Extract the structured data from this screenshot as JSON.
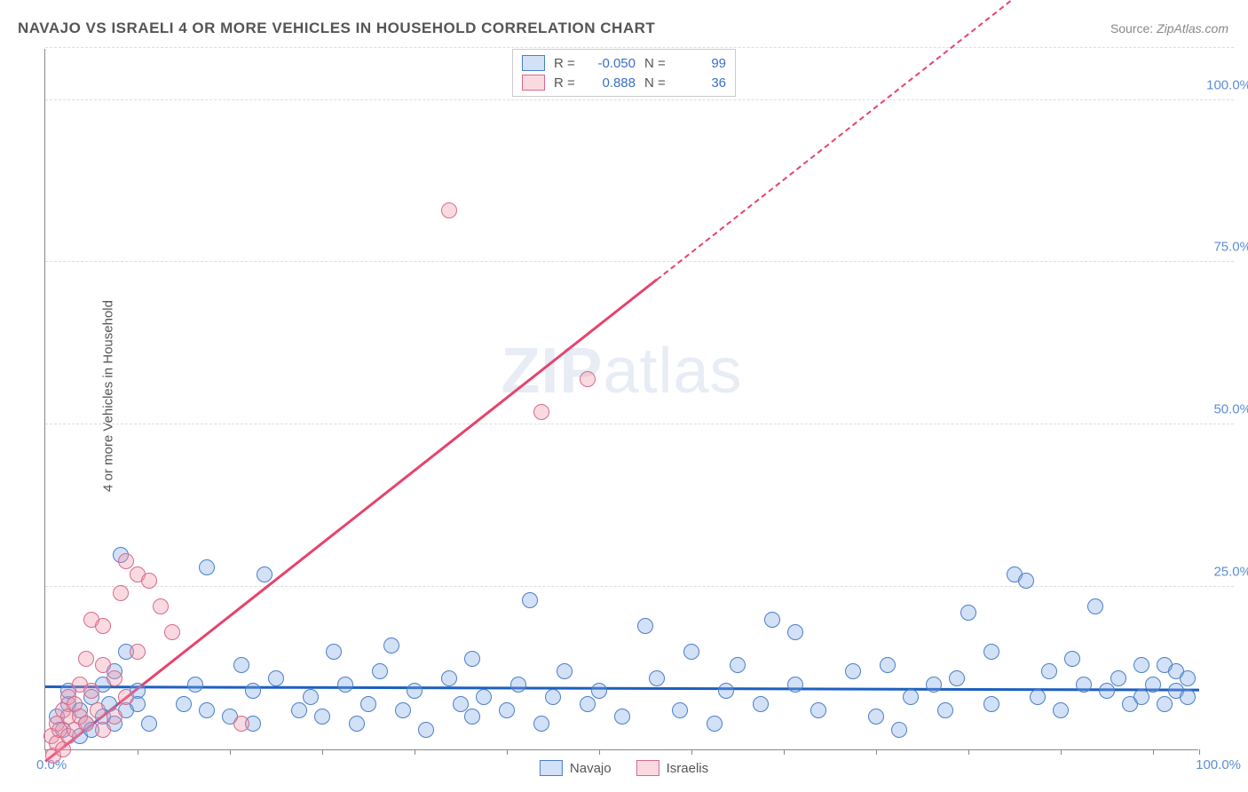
{
  "title": "NAVAJO VS ISRAELI 4 OR MORE VEHICLES IN HOUSEHOLD CORRELATION CHART",
  "source_label": "Source:",
  "source_name": "ZipAtlas.com",
  "watermark_zip": "ZIP",
  "watermark_atlas": "atlas",
  "chart": {
    "type": "scatter",
    "ylabel": "4 or more Vehicles in Household",
    "xlim": [
      0,
      100
    ],
    "ylim": [
      0,
      108
    ],
    "xtick_positions": [
      0,
      8,
      16,
      24,
      32,
      40,
      48,
      56,
      64,
      72,
      80,
      88,
      96,
      100
    ],
    "xtick_label_min": "0.0%",
    "xtick_label_max": "100.0%",
    "ytick_positions": [
      25,
      50,
      75,
      100
    ],
    "ytick_labels": [
      "25.0%",
      "50.0%",
      "75.0%",
      "100.0%"
    ],
    "background_color": "#ffffff",
    "grid_color": "#dddddd",
    "axis_color": "#888888",
    "label_color": "#555555",
    "tick_label_color": "#5b8fd6",
    "title_fontsize": 17,
    "label_fontsize": 15,
    "marker_radius": 9,
    "marker_border_width": 1.5,
    "series": [
      {
        "name": "Navajo",
        "fill_color": "rgba(130,170,230,0.35)",
        "border_color": "#4a7fc9",
        "correlation_R": "-0.050",
        "correlation_N": "99",
        "trendline": {
          "color": "#1d5fbf",
          "width": 2.5,
          "y_at_x0": 9.5,
          "y_at_x100": 9.0,
          "dash_from_x": null
        },
        "points": [
          [
            1,
            5
          ],
          [
            1.5,
            3
          ],
          [
            2,
            7
          ],
          [
            2,
            9
          ],
          [
            3,
            2
          ],
          [
            3,
            6
          ],
          [
            3.5,
            4
          ],
          [
            4,
            8
          ],
          [
            4,
            3
          ],
          [
            5,
            10
          ],
          [
            5,
            5
          ],
          [
            5.5,
            7
          ],
          [
            6,
            12
          ],
          [
            6,
            4
          ],
          [
            6.5,
            30
          ],
          [
            7,
            6
          ],
          [
            7,
            15
          ],
          [
            8,
            9
          ],
          [
            8,
            7
          ],
          [
            9,
            4
          ],
          [
            12,
            7
          ],
          [
            13,
            10
          ],
          [
            14,
            28
          ],
          [
            14,
            6
          ],
          [
            16,
            5
          ],
          [
            17,
            13
          ],
          [
            18,
            9
          ],
          [
            18,
            4
          ],
          [
            19,
            27
          ],
          [
            20,
            11
          ],
          [
            22,
            6
          ],
          [
            23,
            8
          ],
          [
            24,
            5
          ],
          [
            25,
            15
          ],
          [
            26,
            10
          ],
          [
            27,
            4
          ],
          [
            28,
            7
          ],
          [
            29,
            12
          ],
          [
            30,
            16
          ],
          [
            31,
            6
          ],
          [
            32,
            9
          ],
          [
            33,
            3
          ],
          [
            35,
            11
          ],
          [
            36,
            7
          ],
          [
            37,
            5
          ],
          [
            37,
            14
          ],
          [
            38,
            8
          ],
          [
            40,
            6
          ],
          [
            41,
            10
          ],
          [
            42,
            23
          ],
          [
            43,
            4
          ],
          [
            44,
            8
          ],
          [
            45,
            12
          ],
          [
            47,
            7
          ],
          [
            48,
            9
          ],
          [
            50,
            5
          ],
          [
            52,
            19
          ],
          [
            53,
            11
          ],
          [
            55,
            6
          ],
          [
            56,
            15
          ],
          [
            58,
            4
          ],
          [
            59,
            9
          ],
          [
            60,
            13
          ],
          [
            62,
            7
          ],
          [
            63,
            20
          ],
          [
            65,
            18
          ],
          [
            65,
            10
          ],
          [
            67,
            6
          ],
          [
            70,
            12
          ],
          [
            72,
            5
          ],
          [
            73,
            13
          ],
          [
            74,
            3
          ],
          [
            75,
            8
          ],
          [
            77,
            10
          ],
          [
            78,
            6
          ],
          [
            79,
            11
          ],
          [
            80,
            21
          ],
          [
            82,
            15
          ],
          [
            82,
            7
          ],
          [
            84,
            27
          ],
          [
            85,
            26
          ],
          [
            86,
            8
          ],
          [
            87,
            12
          ],
          [
            88,
            6
          ],
          [
            89,
            14
          ],
          [
            90,
            10
          ],
          [
            91,
            22
          ],
          [
            92,
            9
          ],
          [
            93,
            11
          ],
          [
            94,
            7
          ],
          [
            95,
            13
          ],
          [
            95,
            8
          ],
          [
            96,
            10
          ],
          [
            97,
            7
          ],
          [
            97,
            13
          ],
          [
            98,
            9
          ],
          [
            98,
            12
          ],
          [
            99,
            8
          ],
          [
            99,
            11
          ]
        ]
      },
      {
        "name": "Israelis",
        "fill_color": "rgba(240,150,170,0.35)",
        "border_color": "#d76a8a",
        "correlation_R": "0.888",
        "correlation_N": "36",
        "trendline": {
          "color": "#e6436d",
          "width": 2.5,
          "y_at_x0": -2,
          "y_at_x100": 138,
          "dash_from_x": 53
        },
        "points": [
          [
            0.5,
            2
          ],
          [
            0.7,
            -1
          ],
          [
            1,
            4
          ],
          [
            1,
            1
          ],
          [
            1.2,
            3
          ],
          [
            1.5,
            6
          ],
          [
            1.5,
            0
          ],
          [
            2,
            5
          ],
          [
            2,
            8
          ],
          [
            2,
            2
          ],
          [
            2.5,
            7
          ],
          [
            2.5,
            3
          ],
          [
            3,
            10
          ],
          [
            3,
            5
          ],
          [
            3.5,
            4
          ],
          [
            3.5,
            14
          ],
          [
            4,
            9
          ],
          [
            4,
            20
          ],
          [
            4.5,
            6
          ],
          [
            5,
            13
          ],
          [
            5,
            3
          ],
          [
            5,
            19
          ],
          [
            6,
            11
          ],
          [
            6,
            5
          ],
          [
            6.5,
            24
          ],
          [
            7,
            8
          ],
          [
            7,
            29
          ],
          [
            8,
            15
          ],
          [
            8,
            27
          ],
          [
            9,
            26
          ],
          [
            10,
            22
          ],
          [
            11,
            18
          ],
          [
            17,
            4
          ],
          [
            35,
            83
          ],
          [
            43,
            52
          ],
          [
            47,
            57
          ]
        ]
      }
    ],
    "legend_top": {
      "R_label": "R =",
      "N_label": "N ="
    },
    "legend_bottom_names": [
      "Navajo",
      "Israelis"
    ]
  }
}
